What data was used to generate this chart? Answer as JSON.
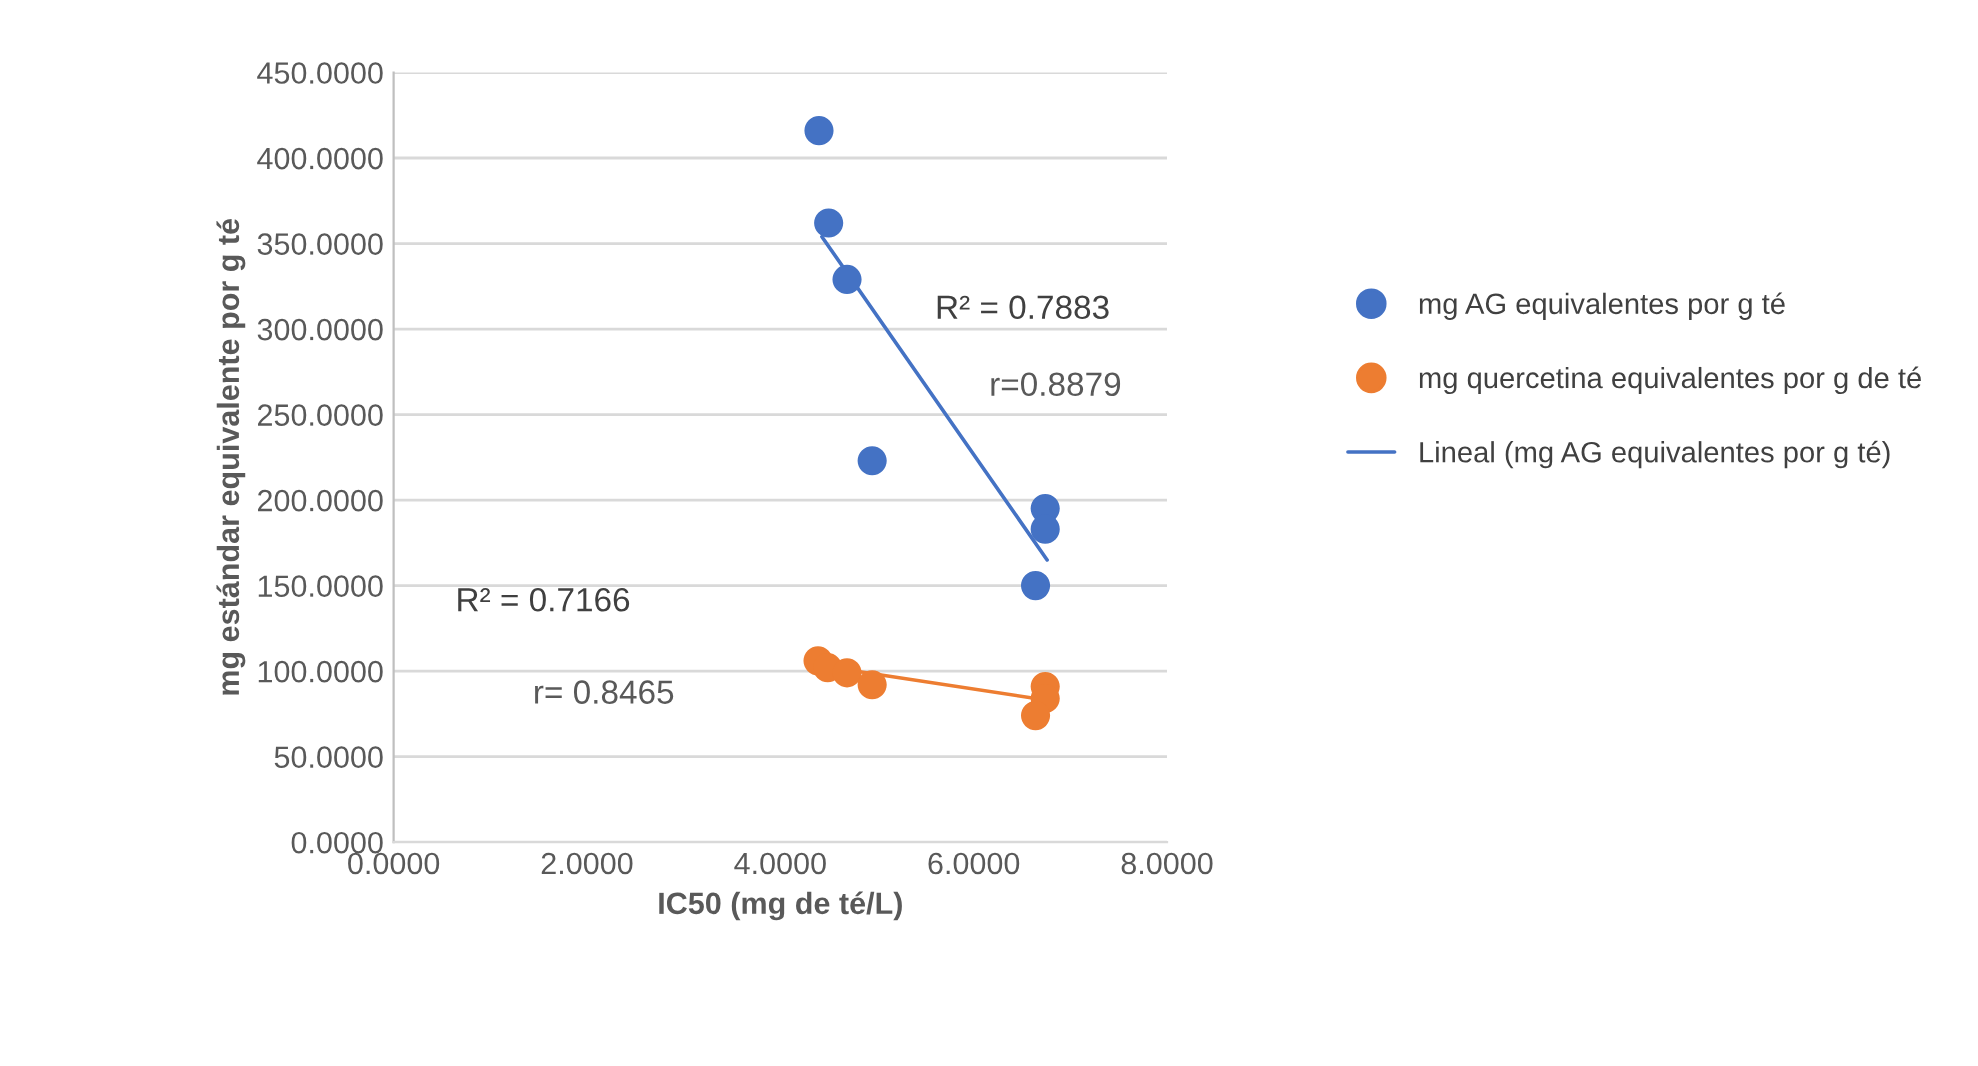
{
  "chart_data": {
    "type": "scatter",
    "xlabel": "IC50 (mg de té/L)",
    "ylabel": "mg estándar equivalente por g té",
    "xlim": [
      0,
      8
    ],
    "ylim": [
      0,
      450
    ],
    "xticks": [
      {
        "value": 0,
        "label": "0.0000"
      },
      {
        "value": 2,
        "label": "2.0000"
      },
      {
        "value": 4,
        "label": "4.0000"
      },
      {
        "value": 6,
        "label": "6.0000"
      },
      {
        "value": 8,
        "label": "8.0000"
      }
    ],
    "yticks": [
      {
        "value": 0,
        "label": "0.0000"
      },
      {
        "value": 50,
        "label": "50.0000"
      },
      {
        "value": 100,
        "label": "100.0000"
      },
      {
        "value": 150,
        "label": "150.0000"
      },
      {
        "value": 200,
        "label": "200.0000"
      },
      {
        "value": 250,
        "label": "250.0000"
      },
      {
        "value": 300,
        "label": "300.0000"
      },
      {
        "value": 350,
        "label": "350.0000"
      },
      {
        "value": 400,
        "label": "400.0000"
      },
      {
        "value": 450,
        "label": "450.0000"
      }
    ],
    "grid": "y",
    "legend": "right",
    "marker": "circle",
    "series": [
      {
        "name": "mg AG equivalentes por g té",
        "color": "#4472c4",
        "x": [
          4.4,
          4.5,
          4.69,
          4.95,
          6.74,
          6.74,
          6.64
        ],
        "values": [
          416,
          362,
          329,
          223,
          195,
          183,
          150
        ]
      },
      {
        "name": "mg quercetina equivalentes por g de té",
        "color": "#ed7d31",
        "x": [
          4.39,
          4.49,
          4.69,
          4.95,
          6.74,
          6.74,
          6.64
        ],
        "values": [
          106,
          102,
          99,
          92,
          91,
          84,
          74
        ]
      },
      {
        "type": "line",
        "marker": "none",
        "name": "Lineal (mg AG equivalentes por g té)",
        "color": "#4472c4",
        "x": [
          4.43,
          6.76
        ],
        "values": [
          354,
          165
        ]
      },
      {
        "type": "line",
        "marker": "none",
        "color": "#ed7d31",
        "x": [
          4.43,
          6.76
        ],
        "values": [
          103,
          83
        ]
      }
    ],
    "annotations": [
      "R² = 0.7883",
      "r=0.8879",
      "R² = 0.7166",
      "r= 0.8465"
    ]
  }
}
